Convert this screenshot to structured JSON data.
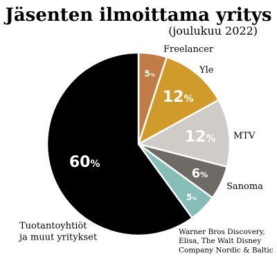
{
  "chart_data": {
    "type": "pie",
    "title": "Jäsenten ilmoittama yritys",
    "subtitle": "(joulukuu 2022)",
    "unit": "%",
    "slices": [
      {
        "label": "Freelancer",
        "value": 5,
        "color": "#c17b47"
      },
      {
        "label": "Yle",
        "value": 12,
        "color": "#d19b2b"
      },
      {
        "label": "MTV",
        "value": 12,
        "color": "#cfcbc6"
      },
      {
        "label": "Sanoma",
        "value": 6,
        "color": "#6e6b66"
      },
      {
        "label": "Warner Bros Discovery, Elisa, The Walt Disney Company Nordic & Baltic",
        "value": 5,
        "color": "#86bdb6"
      },
      {
        "label": "Tuotantoyhtiöt ja muut yritykset",
        "value": 60,
        "color": "#000000"
      }
    ]
  }
}
